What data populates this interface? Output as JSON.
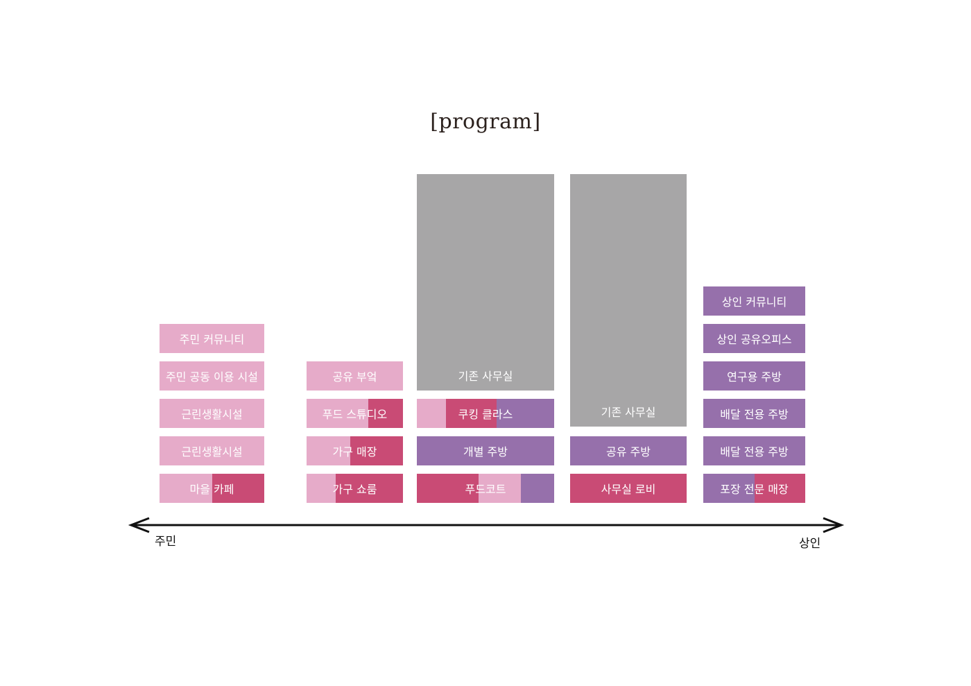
{
  "title": "[program]",
  "colors": {
    "light_pink": "#e6abc9",
    "rose": "#c94b75",
    "purple": "#9670ab",
    "gray": "#a7a6a7"
  },
  "axis": {
    "left_label": "주민",
    "right_label": "상인"
  },
  "columns": [
    {
      "blocks": [
        {
          "label": "주민 커뮤니티",
          "segments": [
            {
              "color": "light_pink",
              "share": 1
            }
          ]
        },
        {
          "label": "주민 공동 이용 시설",
          "segments": [
            {
              "color": "light_pink",
              "share": 1
            }
          ]
        },
        {
          "label": "근린생활시설",
          "segments": [
            {
              "color": "light_pink",
              "share": 1
            }
          ]
        },
        {
          "label": "근린생활시설",
          "segments": [
            {
              "color": "light_pink",
              "share": 1
            }
          ]
        },
        {
          "label": "마을 카페",
          "segments": [
            {
              "color": "light_pink",
              "share": 0.5
            },
            {
              "color": "rose",
              "share": 0.5
            }
          ]
        }
      ]
    },
    {
      "blocks": [
        {
          "label": "공유 부엌",
          "segments": [
            {
              "color": "light_pink",
              "share": 1
            }
          ]
        },
        {
          "label": "푸드 스튜디오",
          "segments": [
            {
              "color": "light_pink",
              "share": 0.64
            },
            {
              "color": "rose",
              "share": 0.36
            }
          ]
        },
        {
          "label": "가구 매장",
          "segments": [
            {
              "color": "light_pink",
              "share": 0.45
            },
            {
              "color": "rose",
              "share": 0.55
            }
          ]
        },
        {
          "label": "가구 쇼룸",
          "segments": [
            {
              "color": "light_pink",
              "share": 0.3
            },
            {
              "color": "rose",
              "share": 0.7
            }
          ]
        }
      ]
    },
    {
      "blocks": [
        {
          "label": "기존 사무실",
          "segments": [
            {
              "color": "gray",
              "share": 1
            }
          ]
        },
        {
          "label": "쿠킹 클라스",
          "segments": [
            {
              "color": "light_pink",
              "share": 0.21
            },
            {
              "color": "rose",
              "share": 0.37
            },
            {
              "color": "purple",
              "share": 0.42
            }
          ]
        },
        {
          "label": "개별 주방",
          "segments": [
            {
              "color": "purple",
              "share": 1
            }
          ]
        },
        {
          "label": "푸드코트",
          "segments": [
            {
              "color": "rose",
              "share": 0.45
            },
            {
              "color": "light_pink",
              "share": 0.31
            },
            {
              "color": "purple",
              "share": 0.24
            }
          ]
        }
      ]
    },
    {
      "blocks": [
        {
          "label": "기존 사무실",
          "segments": [
            {
              "color": "gray",
              "share": 1
            }
          ]
        },
        {
          "label": "공유 주방",
          "segments": [
            {
              "color": "purple",
              "share": 1
            }
          ]
        },
        {
          "label": "사무실 로비",
          "segments": [
            {
              "color": "rose",
              "share": 1
            }
          ]
        }
      ]
    },
    {
      "blocks": [
        {
          "label": "상인 커뮤니티",
          "segments": [
            {
              "color": "purple",
              "share": 1
            }
          ]
        },
        {
          "label": "상인 공유오피스",
          "segments": [
            {
              "color": "purple",
              "share": 1
            }
          ]
        },
        {
          "label": "연구용 주방",
          "segments": [
            {
              "color": "purple",
              "share": 1
            }
          ]
        },
        {
          "label": "배달 전용 주방",
          "segments": [
            {
              "color": "purple",
              "share": 1
            }
          ]
        },
        {
          "label": "배달 전용 주방",
          "segments": [
            {
              "color": "purple",
              "share": 1
            }
          ]
        },
        {
          "label": "포장 전문 매장",
          "segments": [
            {
              "color": "purple",
              "share": 0.5
            },
            {
              "color": "rose",
              "share": 0.5
            }
          ]
        }
      ]
    }
  ]
}
